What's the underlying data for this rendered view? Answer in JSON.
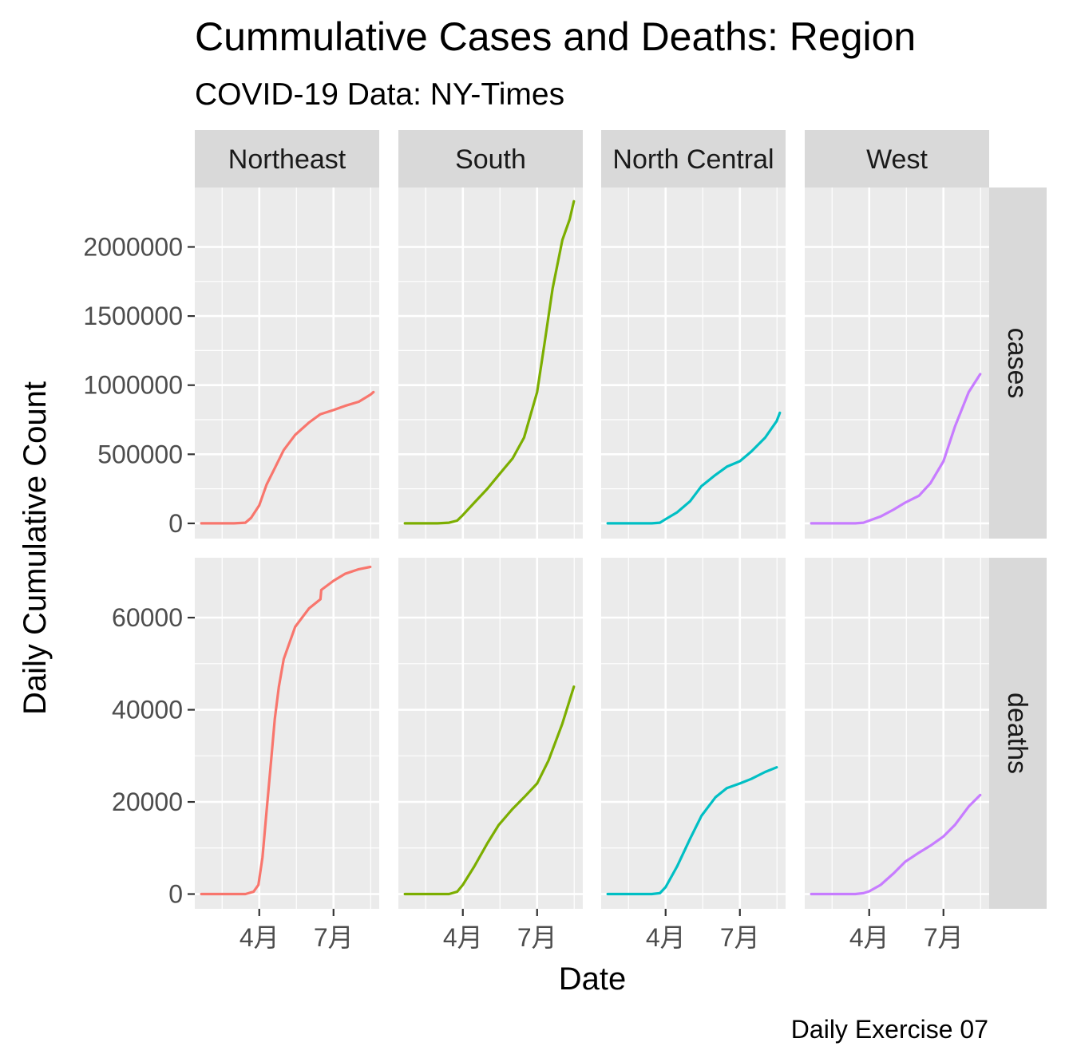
{
  "chart_data": {
    "type": "line",
    "title": "Cummulative Cases and Deaths: Region",
    "subtitle": "COVID-19 Data: NY-Times",
    "xlabel": "Date",
    "ylabel": "Daily Cumulative Count",
    "caption": "Daily Exercise 07",
    "x_tick_labels": [
      "4月",
      "7月"
    ],
    "x_ticks": [
      "2020-04-01",
      "2020-07-01"
    ],
    "xlim": [
      "2020-01-13",
      "2020-08-26"
    ],
    "facet_columns": [
      "Northeast",
      "South",
      "North Central",
      "West"
    ],
    "facet_rows": [
      "cases",
      "deaths"
    ],
    "rows": [
      {
        "name": "cases",
        "ylim": [
          -110000,
          2430000
        ],
        "y_ticks": [
          0,
          500000,
          1000000,
          1500000,
          2000000
        ],
        "y_tick_labels": [
          "0",
          "500000",
          "1000000",
          "1500000",
          "2000000"
        ]
      },
      {
        "name": "deaths",
        "ylim": [
          -3200,
          73000
        ],
        "y_ticks": [
          0,
          20000,
          40000,
          60000
        ],
        "y_tick_labels": [
          "0",
          "20000",
          "40000",
          "60000"
        ]
      }
    ],
    "colors": {
      "Northeast": "#F8766D",
      "South": "#7CAE00",
      "North Central": "#00BFC4",
      "West": "#C77CFF"
    },
    "grid": true,
    "legend": "none",
    "series": [
      {
        "region": "Northeast",
        "metric": "cases",
        "points": [
          [
            "2020-01-21",
            0
          ],
          [
            "2020-03-01",
            0
          ],
          [
            "2020-03-15",
            5000
          ],
          [
            "2020-03-22",
            40000
          ],
          [
            "2020-04-01",
            130000
          ],
          [
            "2020-04-10",
            280000
          ],
          [
            "2020-04-20",
            400000
          ],
          [
            "2020-05-01",
            530000
          ],
          [
            "2020-05-15",
            640000
          ],
          [
            "2020-06-01",
            730000
          ],
          [
            "2020-06-15",
            790000
          ],
          [
            "2020-07-01",
            820000
          ],
          [
            "2020-07-15",
            850000
          ],
          [
            "2020-08-01",
            880000
          ],
          [
            "2020-08-15",
            930000
          ],
          [
            "2020-08-19",
            950000
          ]
        ]
      },
      {
        "region": "South",
        "metric": "cases",
        "points": [
          [
            "2020-01-21",
            0
          ],
          [
            "2020-03-01",
            0
          ],
          [
            "2020-03-15",
            5000
          ],
          [
            "2020-03-25",
            20000
          ],
          [
            "2020-04-01",
            60000
          ],
          [
            "2020-04-15",
            150000
          ],
          [
            "2020-05-01",
            250000
          ],
          [
            "2020-05-15",
            350000
          ],
          [
            "2020-06-01",
            470000
          ],
          [
            "2020-06-15",
            620000
          ],
          [
            "2020-07-01",
            950000
          ],
          [
            "2020-07-10",
            1300000
          ],
          [
            "2020-07-20",
            1700000
          ],
          [
            "2020-08-01",
            2050000
          ],
          [
            "2020-08-10",
            2200000
          ],
          [
            "2020-08-15",
            2330000
          ]
        ]
      },
      {
        "region": "North Central",
        "metric": "cases",
        "points": [
          [
            "2020-01-21",
            0
          ],
          [
            "2020-03-15",
            0
          ],
          [
            "2020-03-25",
            5000
          ],
          [
            "2020-04-01",
            30000
          ],
          [
            "2020-04-15",
            80000
          ],
          [
            "2020-05-01",
            160000
          ],
          [
            "2020-05-15",
            270000
          ],
          [
            "2020-06-01",
            350000
          ],
          [
            "2020-06-15",
            410000
          ],
          [
            "2020-07-01",
            450000
          ],
          [
            "2020-07-15",
            520000
          ],
          [
            "2020-08-01",
            620000
          ],
          [
            "2020-08-15",
            740000
          ],
          [
            "2020-08-19",
            800000
          ]
        ]
      },
      {
        "region": "West",
        "metric": "cases",
        "points": [
          [
            "2020-01-21",
            0
          ],
          [
            "2020-03-15",
            0
          ],
          [
            "2020-03-25",
            5000
          ],
          [
            "2020-04-01",
            20000
          ],
          [
            "2020-04-15",
            50000
          ],
          [
            "2020-05-01",
            100000
          ],
          [
            "2020-05-15",
            150000
          ],
          [
            "2020-06-01",
            200000
          ],
          [
            "2020-06-15",
            290000
          ],
          [
            "2020-07-01",
            450000
          ],
          [
            "2020-07-15",
            700000
          ],
          [
            "2020-08-01",
            950000
          ],
          [
            "2020-08-15",
            1080000
          ]
        ]
      },
      {
        "region": "Northeast",
        "metric": "deaths",
        "points": [
          [
            "2020-01-21",
            0
          ],
          [
            "2020-03-15",
            0
          ],
          [
            "2020-03-25",
            500
          ],
          [
            "2020-03-31",
            2000
          ],
          [
            "2020-04-05",
            8000
          ],
          [
            "2020-04-10",
            18000
          ],
          [
            "2020-04-15",
            28000
          ],
          [
            "2020-04-20",
            38000
          ],
          [
            "2020-04-25",
            45000
          ],
          [
            "2020-05-01",
            51000
          ],
          [
            "2020-05-15",
            58000
          ],
          [
            "2020-06-01",
            62000
          ],
          [
            "2020-06-15",
            64000
          ],
          [
            "2020-06-16",
            66000
          ],
          [
            "2020-07-01",
            68000
          ],
          [
            "2020-07-15",
            69500
          ],
          [
            "2020-08-01",
            70500
          ],
          [
            "2020-08-15",
            71000
          ]
        ]
      },
      {
        "region": "South",
        "metric": "deaths",
        "points": [
          [
            "2020-01-21",
            0
          ],
          [
            "2020-03-15",
            0
          ],
          [
            "2020-03-25",
            500
          ],
          [
            "2020-04-01",
            2000
          ],
          [
            "2020-04-15",
            6000
          ],
          [
            "2020-05-01",
            11000
          ],
          [
            "2020-05-15",
            15000
          ],
          [
            "2020-06-01",
            18500
          ],
          [
            "2020-06-15",
            21000
          ],
          [
            "2020-07-01",
            24000
          ],
          [
            "2020-07-15",
            29000
          ],
          [
            "2020-08-01",
            37000
          ],
          [
            "2020-08-15",
            45000
          ]
        ]
      },
      {
        "region": "North Central",
        "metric": "deaths",
        "points": [
          [
            "2020-01-21",
            0
          ],
          [
            "2020-03-15",
            0
          ],
          [
            "2020-03-25",
            200
          ],
          [
            "2020-04-01",
            1500
          ],
          [
            "2020-04-15",
            6000
          ],
          [
            "2020-05-01",
            12000
          ],
          [
            "2020-05-15",
            17000
          ],
          [
            "2020-06-01",
            21000
          ],
          [
            "2020-06-15",
            23000
          ],
          [
            "2020-07-01",
            24000
          ],
          [
            "2020-07-15",
            25000
          ],
          [
            "2020-08-01",
            26500
          ],
          [
            "2020-08-15",
            27500
          ]
        ]
      },
      {
        "region": "West",
        "metric": "deaths",
        "points": [
          [
            "2020-01-21",
            0
          ],
          [
            "2020-03-15",
            0
          ],
          [
            "2020-03-25",
            200
          ],
          [
            "2020-04-01",
            600
          ],
          [
            "2020-04-15",
            2000
          ],
          [
            "2020-05-01",
            4500
          ],
          [
            "2020-05-15",
            7000
          ],
          [
            "2020-06-01",
            9000
          ],
          [
            "2020-06-15",
            10500
          ],
          [
            "2020-07-01",
            12500
          ],
          [
            "2020-07-15",
            15000
          ],
          [
            "2020-08-01",
            19000
          ],
          [
            "2020-08-15",
            21500
          ]
        ]
      }
    ]
  }
}
